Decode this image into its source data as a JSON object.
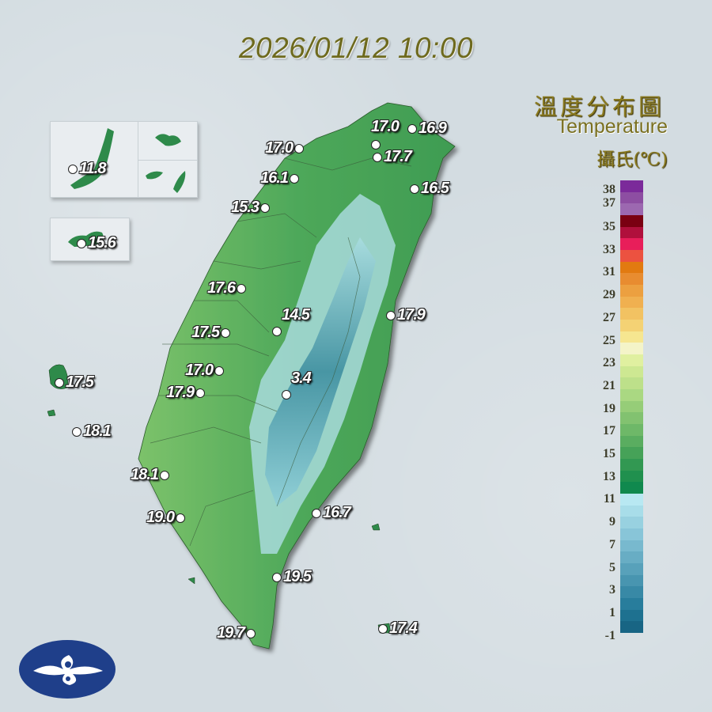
{
  "timestamp": "2026/01/12 10:00",
  "legend": {
    "title_cn": "溫度分布圖",
    "title_en": "Temperature",
    "unit": "攝氏(℃)",
    "ticks": [
      "38",
      "37",
      "35",
      "33",
      "31",
      "29",
      "27",
      "25",
      "23",
      "21",
      "19",
      "17",
      "15",
      "13",
      "11",
      "9",
      "7",
      "5",
      "3",
      "1",
      "-1"
    ],
    "colors_top_to_bottom": [
      "#7b2a9a",
      "#8d4ea2",
      "#9c68b0",
      "#7a0012",
      "#b0103c",
      "#e81e5a",
      "#ec5240",
      "#e27a10",
      "#e88c30",
      "#eca040",
      "#f0b050",
      "#f2c262",
      "#f4d274",
      "#f6e690",
      "#f4f4c8",
      "#e0f0a0",
      "#cde892",
      "#bde08a",
      "#aad882",
      "#96cd78",
      "#82c270",
      "#6eb868",
      "#5aad60",
      "#46a258",
      "#329852",
      "#20904e",
      "#10894e",
      "#b8e8f2",
      "#a8dde9",
      "#98d1e0",
      "#88c5d8",
      "#78b9ce",
      "#68adc4",
      "#58a1ba",
      "#4895b0",
      "#3889a6",
      "#287d9c",
      "#1e7190",
      "#186584"
    ]
  },
  "stations": [
    {
      "value": "11.8"
    },
    {
      "value": "15.6"
    },
    {
      "value": "17.0"
    },
    {
      "value": "16.1"
    },
    {
      "value": "15.3"
    },
    {
      "value": "17.0"
    },
    {
      "value": "16.9"
    },
    {
      "value": "17.7"
    },
    {
      "value": "16.5"
    },
    {
      "value": "17.6"
    },
    {
      "value": "17.9"
    },
    {
      "value": "14.5"
    },
    {
      "value": "17.5"
    },
    {
      "value": "17.0"
    },
    {
      "value": "3.4"
    },
    {
      "value": "17.9"
    },
    {
      "value": "17.5"
    },
    {
      "value": "18.1"
    },
    {
      "value": "18.1"
    },
    {
      "value": "19.0"
    },
    {
      "value": "16.7"
    },
    {
      "value": "19.5"
    },
    {
      "value": "19.7"
    },
    {
      "value": "17.4"
    }
  ],
  "logo": {
    "name": "cwa-logo"
  }
}
